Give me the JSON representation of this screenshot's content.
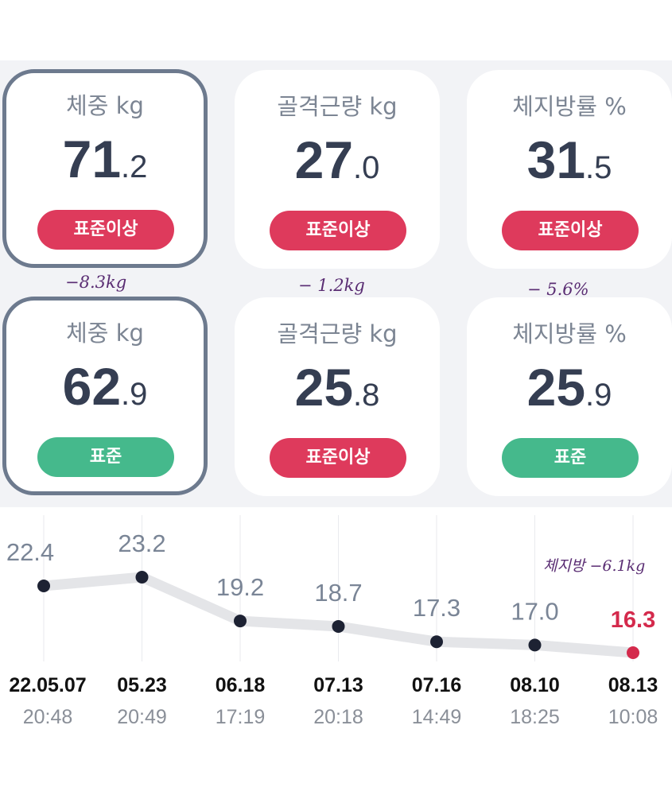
{
  "before": {
    "weight": {
      "label": "체중 kg",
      "int": "71",
      "dec": ".2",
      "status": "표준이상"
    },
    "muscle": {
      "label": "골격근량 kg",
      "int": "27",
      "dec": ".0",
      "status": "표준이상"
    },
    "fat": {
      "label": "체지방률 %",
      "int": "31",
      "dec": ".5",
      "status": "표준이상"
    }
  },
  "after": {
    "weight": {
      "label": "체중 kg",
      "int": "62",
      "dec": ".9",
      "status": "표준"
    },
    "muscle": {
      "label": "골격근량 kg",
      "int": "25",
      "dec": ".8",
      "status": "표준이상"
    },
    "fat": {
      "label": "체지방률 %",
      "int": "25",
      "dec": ".9",
      "status": "표준"
    }
  },
  "notes": {
    "weight_diff": "−8.3kg",
    "muscle_diff": "− 1.2kg",
    "fat_diff": "− 5.6%",
    "fat_mass_diff": "체지방 −6.1kg"
  },
  "colors": {
    "over": "#de3a5c",
    "normal": "#45b98c",
    "highlight_border": "#6d7a8e",
    "latest_point": "#d42a4c"
  },
  "chart_data": {
    "type": "line",
    "x": [
      "22.05.07 20:48",
      "05.23 20:49",
      "06.18 17:19",
      "07.13 20:18",
      "07.16 14:49",
      "08.10 18:25",
      "08.13 10:08"
    ],
    "dates": [
      "22.05.07",
      "05.23",
      "06.18",
      "07.13",
      "07.16",
      "08.10",
      "08.13"
    ],
    "times": [
      "20:48",
      "20:49",
      "17:19",
      "20:18",
      "14:49",
      "18:25",
      "10:08"
    ],
    "values": [
      22.4,
      23.2,
      19.2,
      18.7,
      17.3,
      17.0,
      16.3
    ],
    "value_labels": [
      "22.4",
      "23.2",
      "19.2",
      "18.7",
      "17.3",
      "17.0",
      "16.3"
    ],
    "grid": true
  }
}
